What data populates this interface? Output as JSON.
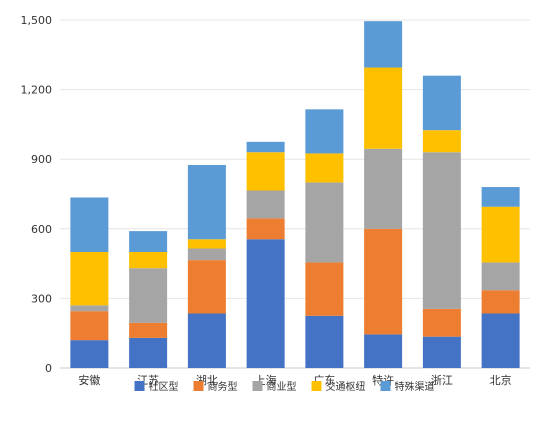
{
  "chart_data": {
    "type": "bar",
    "stacked": true,
    "categories": [
      "安徽",
      "江苏",
      "湖北",
      "上海",
      "广东",
      "特许",
      "浙江",
      "北京"
    ],
    "series": [
      {
        "name": "社区型",
        "color": "#4472C4",
        "values": [
          120,
          130,
          235,
          555,
          225,
          145,
          135,
          235
        ]
      },
      {
        "name": "商务型",
        "color": "#ED7D31",
        "values": [
          125,
          65,
          230,
          90,
          230,
          455,
          120,
          100
        ]
      },
      {
        "name": "商业型",
        "color": "#A5A5A5",
        "values": [
          25,
          235,
          50,
          120,
          345,
          345,
          675,
          120
        ]
      },
      {
        "name": "交通枢纽",
        "color": "#FFC000",
        "values": [
          230,
          70,
          40,
          165,
          125,
          350,
          95,
          240
        ]
      },
      {
        "name": "特殊渠道",
        "color": "#5B9BD5",
        "values": [
          235,
          90,
          320,
          45,
          190,
          200,
          235,
          85
        ]
      }
    ],
    "yticks": [
      "0",
      "300",
      "600",
      "900",
      "1,200",
      "1,500"
    ],
    "ylim": [
      0,
      1500
    ],
    "grid": true,
    "legend_position": "bottom",
    "title": "",
    "xlabel": "",
    "ylabel": ""
  }
}
